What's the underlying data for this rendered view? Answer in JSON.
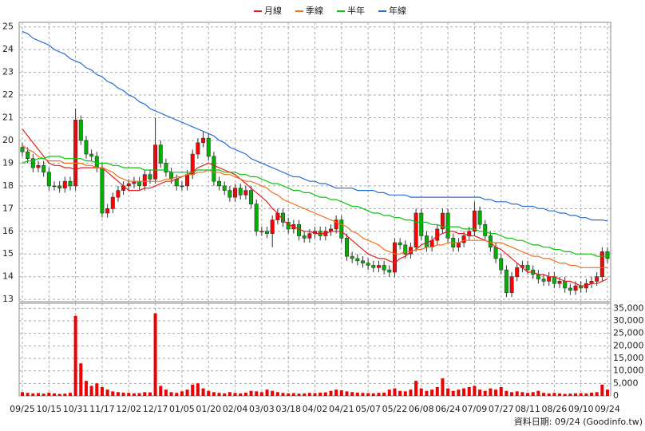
{
  "chart_data": {
    "type": "candlestick",
    "up_color": "#ff0000",
    "down_color": "#00b000",
    "grid": true,
    "footer": "資料日期: 09/24 (Goodinfo.tw)",
    "categories": [
      "09/25",
      null,
      null,
      null,
      null,
      "10/15",
      null,
      null,
      null,
      null,
      "10/31",
      null,
      null,
      null,
      null,
      "11/17",
      null,
      null,
      null,
      null,
      "12/02",
      null,
      null,
      null,
      null,
      "12/17",
      null,
      null,
      null,
      null,
      "01/05",
      null,
      null,
      null,
      null,
      "01/20",
      null,
      null,
      null,
      null,
      "02/04",
      null,
      null,
      null,
      null,
      "03/03",
      null,
      null,
      null,
      null,
      "03/18",
      null,
      null,
      null,
      null,
      "04/02",
      null,
      null,
      null,
      null,
      "04/21",
      null,
      null,
      null,
      null,
      "05/07",
      null,
      null,
      null,
      null,
      "05/22",
      null,
      null,
      null,
      null,
      "06/08",
      null,
      null,
      null,
      null,
      "06/24",
      null,
      null,
      null,
      null,
      "07/09",
      null,
      null,
      null,
      null,
      "07/27",
      null,
      null,
      null,
      null,
      "08/11",
      null,
      null,
      null,
      null,
      "08/26",
      null,
      null,
      null,
      null,
      "09/10",
      null,
      null,
      null,
      null,
      "09/24"
    ],
    "ylim": [
      12.9,
      25.2
    ],
    "yticks": [
      13,
      14,
      15,
      16,
      17,
      18,
      19,
      20,
      21,
      22,
      23,
      24,
      25
    ],
    "open": [
      19.7,
      19.5,
      19.2,
      18.8,
      18.9,
      18.6,
      18.0,
      18.0,
      17.9,
      18.2,
      18.0,
      20.9,
      20.0,
      19.4,
      19.3,
      18.8,
      16.8,
      17.0,
      17.5,
      17.8,
      18.0,
      18.1,
      18.2,
      18.0,
      18.5,
      18.3,
      19.8,
      19.0,
      18.6,
      18.3,
      18.0,
      18.0,
      18.5,
      19.4,
      19.9,
      20.1,
      19.3,
      18.2,
      18.0,
      17.8,
      17.5,
      17.9,
      17.6,
      17.8,
      17.2,
      16.0,
      16.0,
      15.9,
      16.5,
      16.8,
      16.4,
      16.1,
      16.3,
      15.8,
      15.7,
      15.9,
      16.0,
      15.8,
      16.0,
      16.1,
      16.5,
      15.7,
      14.9,
      14.8,
      14.7,
      14.6,
      14.5,
      14.4,
      14.5,
      14.3,
      14.2,
      15.5,
      15.4,
      15.0,
      15.3,
      16.8,
      15.8,
      15.3,
      15.6,
      16.1,
      16.8,
      15.7,
      15.3,
      15.5,
      15.8,
      16.0,
      16.9,
      16.3,
      15.8,
      15.3,
      14.8,
      14.3,
      13.3,
      14.0,
      14.4,
      14.5,
      14.3,
      14.1,
      13.9,
      13.8,
      14.0,
      13.7,
      13.8,
      13.5,
      13.4,
      13.6,
      13.5,
      13.7,
      13.8,
      14.0,
      15.1
    ],
    "high": [
      19.9,
      19.7,
      19.4,
      19.1,
      19.1,
      18.8,
      18.2,
      18.2,
      18.4,
      18.4,
      21.4,
      21.1,
      20.2,
      19.6,
      19.5,
      19.0,
      17.2,
      17.7,
      18.0,
      18.2,
      18.3,
      18.4,
      18.4,
      18.7,
      18.7,
      21.0,
      20.0,
      19.2,
      18.8,
      18.5,
      18.2,
      18.7,
      19.6,
      20.1,
      20.4,
      20.3,
      19.5,
      18.4,
      18.2,
      18.0,
      18.1,
      18.1,
      18.0,
      18.0,
      17.4,
      16.2,
      16.2,
      16.7,
      17.0,
      17.0,
      16.6,
      16.5,
      16.5,
      16.0,
      16.1,
      16.2,
      16.2,
      16.2,
      16.3,
      16.7,
      16.7,
      15.9,
      15.1,
      15.0,
      14.9,
      14.8,
      14.7,
      14.7,
      14.7,
      14.5,
      15.7,
      15.7,
      15.6,
      15.5,
      17.0,
      17.0,
      16.0,
      15.8,
      16.3,
      17.0,
      17.0,
      15.9,
      15.7,
      16.0,
      16.2,
      17.3,
      17.1,
      16.5,
      16.0,
      15.5,
      15.0,
      14.5,
      14.2,
      14.6,
      14.7,
      14.7,
      14.5,
      14.3,
      14.1,
      14.2,
      14.2,
      14.0,
      14.0,
      13.7,
      13.8,
      13.8,
      13.9,
      14.0,
      14.2,
      15.3,
      15.3
    ],
    "low": [
      19.3,
      19.0,
      18.6,
      18.6,
      18.4,
      17.8,
      17.8,
      17.7,
      17.7,
      17.8,
      17.8,
      19.8,
      19.2,
      19.1,
      18.6,
      16.6,
      16.6,
      16.8,
      17.3,
      17.6,
      17.8,
      17.9,
      17.8,
      17.8,
      18.1,
      18.1,
      18.8,
      18.4,
      18.1,
      17.8,
      17.8,
      17.8,
      18.3,
      19.2,
      19.7,
      19.1,
      18.0,
      17.8,
      17.6,
      17.3,
      17.3,
      17.4,
      17.4,
      17.0,
      15.8,
      15.8,
      15.7,
      15.3,
      16.3,
      16.2,
      15.9,
      15.9,
      15.6,
      15.5,
      15.5,
      15.7,
      15.6,
      15.6,
      15.8,
      15.9,
      15.5,
      14.7,
      14.6,
      14.5,
      14.4,
      14.3,
      14.2,
      14.2,
      14.1,
      14.0,
      14.0,
      15.2,
      14.8,
      14.8,
      15.1,
      15.6,
      15.1,
      15.1,
      15.4,
      15.9,
      15.5,
      15.1,
      15.1,
      15.3,
      15.6,
      15.8,
      16.1,
      15.6,
      15.1,
      14.6,
      14.1,
      13.1,
      13.1,
      13.8,
      14.2,
      14.1,
      13.9,
      13.7,
      13.6,
      13.6,
      13.5,
      13.5,
      13.3,
      13.2,
      13.2,
      13.3,
      13.3,
      13.5,
      13.6,
      13.8,
      14.6
    ],
    "close": [
      19.5,
      19.2,
      18.8,
      18.9,
      18.6,
      18.0,
      18.0,
      17.9,
      18.2,
      18.0,
      20.9,
      20.0,
      19.4,
      19.3,
      18.8,
      16.8,
      17.0,
      17.5,
      17.8,
      18.0,
      18.1,
      18.2,
      18.0,
      18.5,
      18.3,
      19.8,
      19.0,
      18.6,
      18.3,
      18.0,
      18.0,
      18.5,
      19.4,
      19.9,
      20.1,
      19.3,
      18.2,
      18.0,
      17.8,
      17.5,
      17.9,
      17.6,
      17.8,
      17.2,
      16.0,
      16.0,
      15.9,
      16.5,
      16.8,
      16.4,
      16.1,
      16.3,
      15.8,
      15.7,
      15.9,
      16.0,
      15.8,
      16.0,
      16.1,
      16.5,
      15.7,
      14.9,
      14.8,
      14.7,
      14.6,
      14.5,
      14.4,
      14.5,
      14.3,
      14.2,
      15.5,
      15.4,
      15.0,
      15.3,
      16.8,
      15.8,
      15.3,
      15.6,
      16.1,
      16.8,
      15.7,
      15.3,
      15.5,
      15.8,
      16.0,
      16.9,
      16.3,
      15.8,
      15.3,
      14.8,
      14.3,
      13.3,
      14.0,
      14.4,
      14.5,
      14.3,
      14.1,
      13.9,
      13.8,
      14.0,
      13.7,
      13.8,
      13.5,
      13.4,
      13.6,
      13.5,
      13.7,
      13.8,
      14.0,
      15.1,
      14.8
    ],
    "series": [
      {
        "name": "月線",
        "color": "#e02020",
        "values": [
          20.5,
          20.2,
          19.9,
          19.6,
          19.3,
          19.0,
          18.9,
          18.9,
          18.8,
          18.8,
          18.7,
          18.8,
          18.8,
          18.8,
          18.8,
          18.8,
          18.6,
          18.4,
          18.2,
          18.0,
          17.8,
          17.8,
          17.8,
          17.9,
          17.9,
          18.0,
          18.1,
          18.2,
          18.2,
          18.3,
          18.4,
          18.5,
          18.6,
          18.8,
          18.9,
          19.0,
          18.9,
          18.8,
          18.7,
          18.6,
          18.5,
          18.3,
          18.1,
          17.9,
          17.7,
          17.5,
          17.3,
          17.0,
          16.8,
          16.5,
          16.3,
          16.2,
          16.1,
          16.0,
          16.0,
          15.9,
          15.9,
          15.9,
          16.0,
          16.0,
          16.0,
          15.8,
          15.6,
          15.4,
          15.2,
          15.0,
          14.9,
          14.8,
          14.8,
          14.7,
          14.6,
          14.8,
          14.9,
          15.1,
          15.2,
          15.4,
          15.5,
          15.6,
          15.8,
          15.9,
          16.0,
          16.0,
          15.9,
          15.9,
          15.8,
          15.8,
          15.7,
          15.6,
          15.5,
          15.3,
          15.2,
          15.0,
          14.8,
          14.6,
          14.4,
          14.2,
          14.2,
          14.1,
          14.1,
          14.0,
          14.0,
          13.9,
          13.8,
          13.8,
          13.7,
          13.6,
          13.6,
          13.7,
          13.7,
          13.8,
          13.9
        ]
      },
      {
        "name": "季線",
        "color": "#f07020",
        "values": [
          19.8,
          19.6,
          19.5,
          19.3,
          19.2,
          19.1,
          19.1,
          19.1,
          19.0,
          19.0,
          19.0,
          19.0,
          18.9,
          18.9,
          18.8,
          18.8,
          18.7,
          18.6,
          18.4,
          18.3,
          18.2,
          18.2,
          18.2,
          18.2,
          18.2,
          18.2,
          18.2,
          18.3,
          18.3,
          18.4,
          18.4,
          18.5,
          18.5,
          18.6,
          18.6,
          18.7,
          18.6,
          18.6,
          18.5,
          18.5,
          18.4,
          18.3,
          18.2,
          18.2,
          18.1,
          18.0,
          17.9,
          17.7,
          17.6,
          17.4,
          17.3,
          17.2,
          17.1,
          17.0,
          16.9,
          16.8,
          16.7,
          16.6,
          16.5,
          16.4,
          16.3,
          16.2,
          16.0,
          15.9,
          15.7,
          15.6,
          15.5,
          15.4,
          15.2,
          15.1,
          15.0,
          15.0,
          15.1,
          15.1,
          15.2,
          15.2,
          15.3,
          15.3,
          15.4,
          15.4,
          15.5,
          15.5,
          15.5,
          15.6,
          15.6,
          15.6,
          15.6,
          15.6,
          15.5,
          15.5,
          15.5,
          15.4,
          15.3,
          15.2,
          15.1,
          15.0,
          14.9,
          14.9,
          14.8,
          14.8,
          14.7,
          14.6,
          14.6,
          14.5,
          14.5,
          14.4,
          14.4,
          14.4,
          14.4,
          14.4,
          14.4
        ]
      },
      {
        "name": "半年",
        "color": "#10c010",
        "values": [
          19.0,
          19.1,
          19.1,
          19.2,
          19.2,
          19.3,
          19.3,
          19.3,
          19.2,
          19.2,
          19.2,
          19.2,
          19.1,
          19.1,
          19.0,
          19.0,
          19.0,
          18.9,
          18.9,
          18.8,
          18.8,
          18.8,
          18.8,
          18.7,
          18.7,
          18.7,
          18.7,
          18.7,
          18.6,
          18.6,
          18.6,
          18.6,
          18.6,
          18.7,
          18.7,
          18.7,
          18.7,
          18.7,
          18.6,
          18.6,
          18.6,
          18.5,
          18.5,
          18.4,
          18.4,
          18.3,
          18.2,
          18.1,
          18.1,
          18.0,
          17.9,
          17.8,
          17.8,
          17.7,
          17.7,
          17.6,
          17.5,
          17.5,
          17.4,
          17.4,
          17.3,
          17.2,
          17.1,
          17.1,
          17.0,
          16.9,
          16.8,
          16.8,
          16.7,
          16.7,
          16.6,
          16.6,
          16.5,
          16.5,
          16.4,
          16.4,
          16.4,
          16.3,
          16.3,
          16.2,
          16.2,
          16.2,
          16.2,
          16.1,
          16.1,
          16.1,
          16.0,
          16.0,
          15.9,
          15.9,
          15.8,
          15.7,
          15.7,
          15.6,
          15.6,
          15.5,
          15.4,
          15.4,
          15.3,
          15.3,
          15.2,
          15.2,
          15.1,
          15.1,
          15.0,
          15.0,
          15.0,
          15.0,
          14.9,
          14.9,
          14.9
        ]
      },
      {
        "name": "年線",
        "color": "#2a6fd0",
        "values": [
          24.8,
          24.7,
          24.5,
          24.4,
          24.3,
          24.2,
          24.0,
          23.9,
          23.8,
          23.6,
          23.5,
          23.4,
          23.2,
          23.1,
          22.9,
          22.8,
          22.6,
          22.5,
          22.3,
          22.2,
          22.0,
          21.9,
          21.7,
          21.6,
          21.4,
          21.3,
          21.2,
          21.1,
          21.0,
          20.9,
          20.8,
          20.7,
          20.6,
          20.5,
          20.4,
          20.3,
          20.2,
          20.0,
          19.9,
          19.7,
          19.6,
          19.5,
          19.4,
          19.2,
          19.1,
          19.0,
          18.9,
          18.8,
          18.7,
          18.6,
          18.5,
          18.4,
          18.4,
          18.3,
          18.2,
          18.2,
          18.1,
          18.1,
          18.0,
          17.9,
          17.9,
          17.9,
          17.9,
          17.8,
          17.8,
          17.8,
          17.8,
          17.7,
          17.7,
          17.6,
          17.6,
          17.6,
          17.6,
          17.5,
          17.5,
          17.5,
          17.5,
          17.5,
          17.5,
          17.5,
          17.5,
          17.5,
          17.5,
          17.5,
          17.5,
          17.5,
          17.5,
          17.4,
          17.4,
          17.3,
          17.3,
          17.3,
          17.2,
          17.2,
          17.1,
          17.1,
          17.1,
          17.0,
          17.0,
          16.9,
          16.9,
          16.8,
          16.8,
          16.7,
          16.7,
          16.6,
          16.6,
          16.5,
          16.5,
          16.5,
          16.45
        ]
      }
    ],
    "volume": {
      "color": "#ee0000",
      "ylim": [
        0,
        37000
      ],
      "yticks": [
        0,
        {
          "value": 5000,
          "label": "5,000"
        },
        {
          "value": 10000,
          "label": "10,000"
        },
        {
          "value": 15000,
          "label": "15,000"
        },
        {
          "value": 20000,
          "label": "20,000"
        },
        {
          "value": 25000,
          "label": "25,000"
        },
        {
          "value": 30000,
          "label": "30,000"
        },
        {
          "value": 35000,
          "label": "35,000"
        }
      ],
      "values": [
        1500,
        1200,
        1000,
        1100,
        900,
        1300,
        1000,
        800,
        900,
        1200,
        32000,
        13000,
        6000,
        4000,
        5000,
        3500,
        2500,
        1800,
        1500,
        1300,
        1200,
        1000,
        1100,
        1500,
        1400,
        33000,
        4000,
        2500,
        1500,
        1200,
        1800,
        2500,
        4500,
        5000,
        3000,
        2000,
        1500,
        1200,
        1000,
        1500,
        1200,
        1000,
        1300,
        2000,
        1800,
        1500,
        2500,
        2000,
        1500,
        1200,
        1000,
        1100,
        900,
        1000,
        1200,
        1100,
        1300,
        1400,
        2000,
        2500,
        2200,
        1800,
        1500,
        1300,
        1200,
        1100,
        1000,
        1200,
        1300,
        2500,
        3000,
        2000,
        1800,
        2500,
        6000,
        3000,
        2000,
        2500,
        3500,
        7000,
        3000,
        2000,
        2500,
        3000,
        3500,
        4000,
        2500,
        2000,
        3000,
        2500,
        3500,
        2000,
        1500,
        1800,
        1500,
        1200,
        1500,
        2000,
        1200,
        1000,
        1200,
        1000,
        800,
        900,
        1000,
        1100,
        1000,
        1300,
        1500,
        4500,
        2500
      ]
    }
  }
}
